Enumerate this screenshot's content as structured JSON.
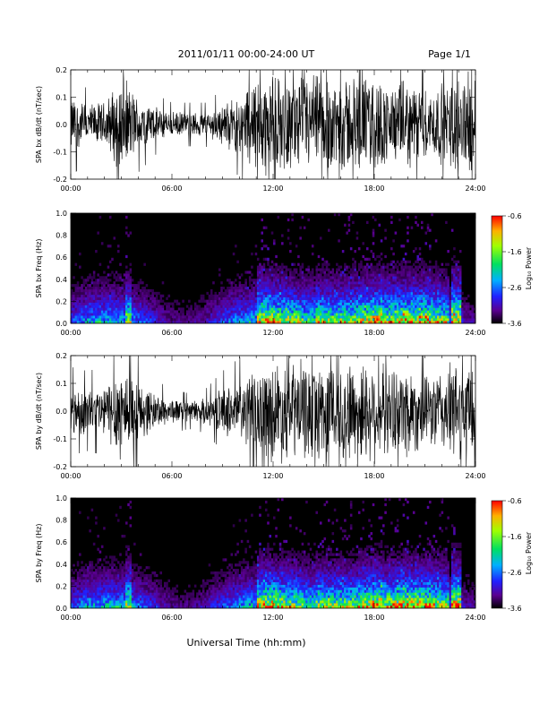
{
  "header": {
    "date_range": "2011/01/11  00:00-24:00 UT",
    "page": "Page 1/1"
  },
  "xlabel": "Universal Time (hh:mm)",
  "chart_data": [
    {
      "type": "line",
      "ylabel": "SPA bx dB/dt (nT/sec)",
      "xticks": [
        "00:00",
        "06:00",
        "12:00",
        "18:00",
        "24:00"
      ],
      "yticks": [
        "-0.2",
        "-0.1",
        "0.0",
        "0.1",
        "0.2"
      ],
      "xlim": [
        0,
        24
      ],
      "ylim": [
        -0.2,
        0.2
      ],
      "envelope_hours": [
        0,
        1,
        2,
        3,
        4,
        5,
        6,
        7,
        8,
        9,
        10,
        11,
        12,
        13,
        14,
        15,
        16,
        17,
        18,
        19,
        20,
        21,
        22,
        23,
        24
      ],
      "envelope_amplitude": [
        0.12,
        0.08,
        0.09,
        0.2,
        0.11,
        0.07,
        0.05,
        0.05,
        0.05,
        0.08,
        0.12,
        0.2,
        0.2,
        0.18,
        0.2,
        0.2,
        0.2,
        0.2,
        0.2,
        0.15,
        0.18,
        0.14,
        0.16,
        0.2,
        0.2
      ]
    },
    {
      "type": "heatmap",
      "ylabel": "SPA bx Freq (Hz)",
      "xticks": [
        "00:00",
        "06:00",
        "12:00",
        "18:00",
        "24:00"
      ],
      "yticks": [
        "0.0",
        "0.2",
        "0.4",
        "0.6",
        "0.8",
        "1.0"
      ],
      "xlim": [
        0,
        24
      ],
      "ylim": [
        0,
        1.0
      ],
      "colorbar": {
        "label": "Log₁₀ Power",
        "ticks": [
          "-0.6",
          "-1.6",
          "-2.6",
          "-3.6"
        ],
        "range": [
          -3.6,
          -0.6
        ]
      }
    },
    {
      "type": "line",
      "ylabel": "SPA by dB/dt (nT/sec)",
      "xticks": [
        "00:00",
        "06:00",
        "12:00",
        "18:00",
        "24:00"
      ],
      "yticks": [
        "-0.2",
        "-0.1",
        "0.0",
        "0.1",
        "0.2"
      ],
      "xlim": [
        0,
        24
      ],
      "ylim": [
        -0.2,
        0.2
      ],
      "envelope_hours": [
        0,
        1,
        2,
        3,
        4,
        5,
        6,
        7,
        8,
        9,
        10,
        11,
        12,
        13,
        14,
        15,
        16,
        17,
        18,
        19,
        20,
        21,
        22,
        23,
        24
      ],
      "envelope_amplitude": [
        0.1,
        0.09,
        0.1,
        0.2,
        0.12,
        0.07,
        0.05,
        0.04,
        0.05,
        0.09,
        0.12,
        0.16,
        0.2,
        0.2,
        0.19,
        0.2,
        0.2,
        0.2,
        0.2,
        0.16,
        0.2,
        0.13,
        0.17,
        0.2,
        0.2
      ]
    },
    {
      "type": "heatmap",
      "ylabel": "SPA by Freq (Hz)",
      "xticks": [
        "00:00",
        "06:00",
        "12:00",
        "18:00",
        "24:00"
      ],
      "yticks": [
        "0.0",
        "0.2",
        "0.4",
        "0.6",
        "0.8",
        "1.0"
      ],
      "xlim": [
        0,
        24
      ],
      "ylim": [
        0,
        1.0
      ],
      "colorbar": {
        "label": "Log₁₀ Power",
        "ticks": [
          "-0.6",
          "-1.6",
          "-2.6",
          "-3.6"
        ],
        "range": [
          -3.6,
          -0.6
        ]
      }
    }
  ]
}
